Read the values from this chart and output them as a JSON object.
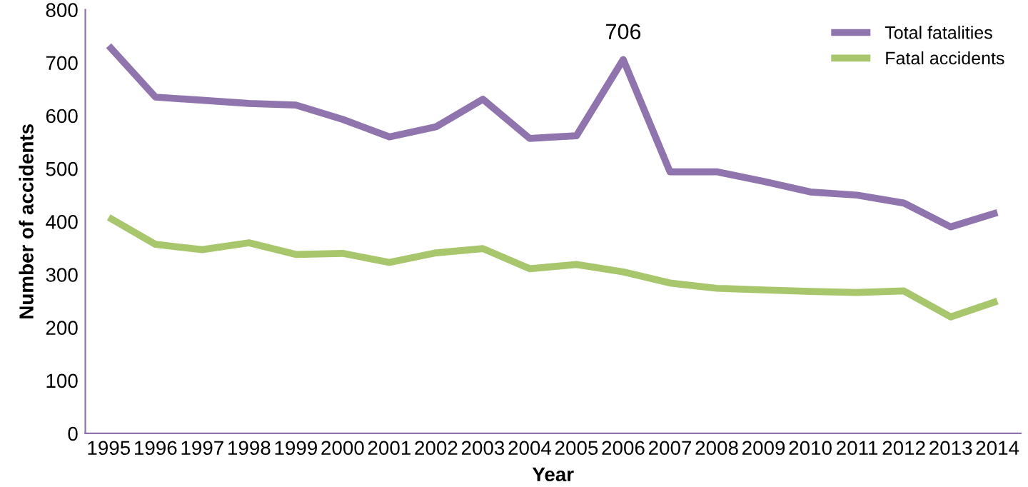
{
  "chart_data": {
    "type": "line",
    "xlabel": "Year",
    "ylabel": "Number of accidents",
    "categories": [
      "1995",
      "1996",
      "1997",
      "1998",
      "1999",
      "2000",
      "2001",
      "2002",
      "2003",
      "2004",
      "2005",
      "2006",
      "2007",
      "2008",
      "2009",
      "2010",
      "2011",
      "2012",
      "2013",
      "2014"
    ],
    "series": [
      {
        "name": "Total fatalities",
        "color": "#8f74ad",
        "values": [
          732,
          635,
          629,
          623,
          620,
          593,
          560,
          579,
          631,
          557,
          562,
          706,
          494,
          494,
          476,
          456,
          450,
          435,
          390,
          417
        ]
      },
      {
        "name": "Fatal accidents",
        "color": "#a8c66c",
        "values": [
          408,
          357,
          347,
          360,
          338,
          340,
          323,
          341,
          349,
          311,
          319,
          305,
          284,
          274,
          271,
          268,
          266,
          269,
          220,
          250
        ]
      }
    ],
    "annotations": [
      {
        "text": "706",
        "x": "2006",
        "y": 706
      }
    ],
    "ylim": [
      0,
      800
    ],
    "yticks": [
      0,
      100,
      200,
      300,
      400,
      500,
      600,
      700,
      800
    ],
    "grid": false,
    "legend": "top right",
    "marker": "none",
    "line_style": "solid"
  }
}
